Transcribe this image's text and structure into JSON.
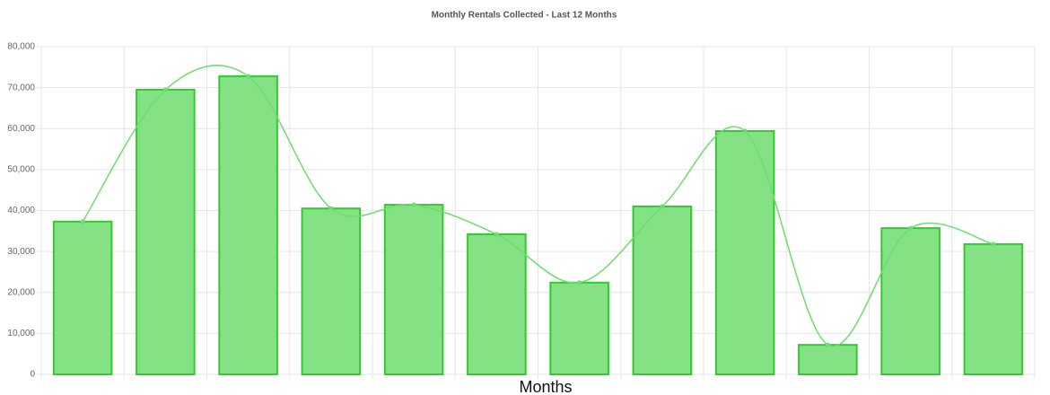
{
  "chart_data": {
    "type": "bar",
    "title": "Monthly Rentals Collected - Last 12 Months",
    "x_label": "Months",
    "categories": [
      null,
      null,
      null,
      null,
      null,
      null,
      null,
      null,
      null,
      null,
      null,
      null
    ],
    "values": [
      37300,
      69500,
      72800,
      40500,
      41400,
      34200,
      22400,
      41000,
      59400,
      7200,
      35700,
      31800
    ],
    "bar_color": "#84e184",
    "bar_border_color": "#2ecc2e",
    "line_overlay": true,
    "line_color": "#6fdc6f",
    "ylim": [
      0,
      80000
    ],
    "yticks": [
      0,
      {
        "value": 10000,
        "label": "10,000"
      },
      {
        "value": 20000,
        "label": "20,000"
      },
      {
        "value": 30000,
        "label": "30,000"
      },
      {
        "value": 40000,
        "label": "40,000"
      },
      {
        "value": 50000,
        "label": "50,000"
      },
      {
        "value": 60000,
        "label": "60,000"
      },
      {
        "value": 70000,
        "label": "70,000"
      },
      {
        "value": 80000,
        "label": "80,000"
      }
    ],
    "grid": true
  }
}
